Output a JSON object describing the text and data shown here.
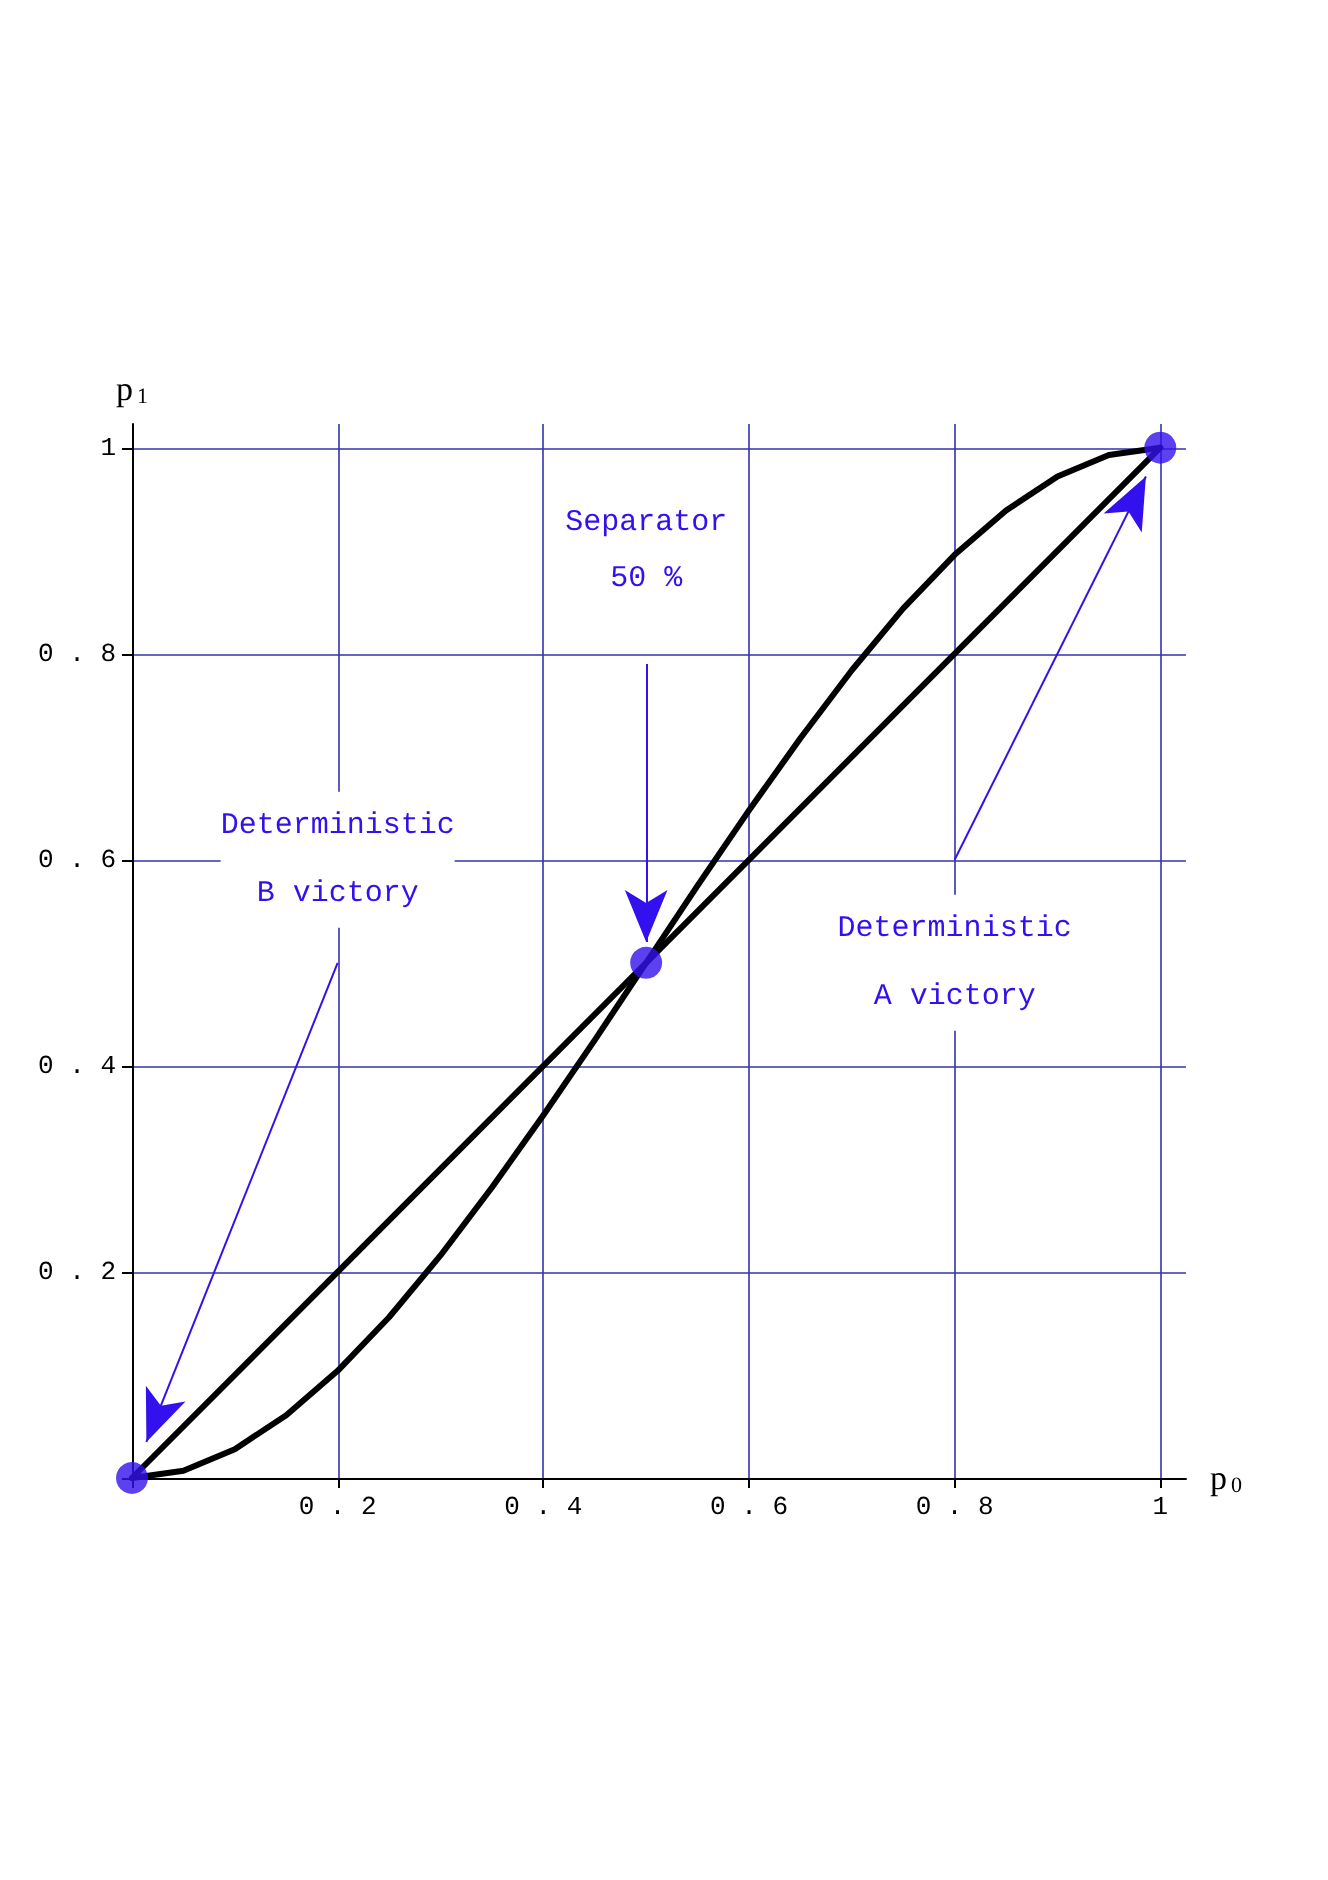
{
  "chart_data": {
    "type": "line",
    "xlabel": "p$_{0}$",
    "ylabel": "p$_{1}$",
    "xlim": [
      0,
      1.025
    ],
    "ylim": [
      0,
      1.023
    ],
    "xticks": [
      {
        "value": 0,
        "label": null
      },
      0.2,
      0.4,
      0.6,
      0.8,
      1
    ],
    "yticks": [
      {
        "value": 0,
        "label": null
      },
      0.2,
      0.4,
      0.6,
      0.8,
      1
    ],
    "grid": true,
    "marker": "none",
    "line_style": "solid",
    "series": [
      {
        "color": "#000000",
        "x": [
          0,
          1
        ],
        "values": [
          0,
          1
        ]
      },
      {
        "color": "#000000",
        "x": [
          0,
          0.05,
          0.1,
          0.15,
          0.2,
          0.25,
          0.3,
          0.35,
          0.4,
          0.45,
          0.5,
          0.55,
          0.6,
          0.65,
          0.7,
          0.75,
          0.8,
          0.85,
          0.9,
          0.95,
          1
        ],
        "values": [
          0,
          0.007,
          0.028,
          0.061,
          0.104,
          0.156,
          0.216,
          0.282,
          0.352,
          0.425,
          0.5,
          0.575,
          0.648,
          0.718,
          0.784,
          0.844,
          0.896,
          0.939,
          0.972,
          0.993,
          1
        ]
      },
      {
        "type": "scatter",
        "marker": "circle",
        "color": "#3311ee",
        "x": [
          0,
          0.5,
          1
        ],
        "values": [
          0,
          0.5,
          1
        ]
      }
    ],
    "annotations": [
      "Separator\n50 %",
      "Deterministic\nB victory",
      "Deterministic\nA victory"
    ]
  }
}
